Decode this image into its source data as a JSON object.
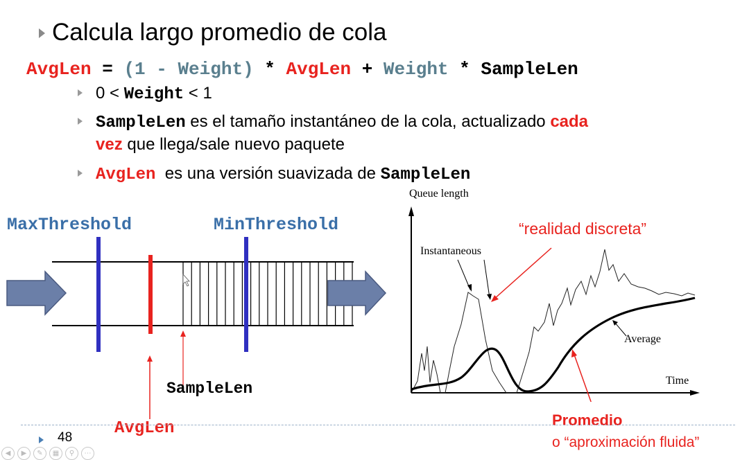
{
  "slide": {
    "title": "Calcula largo promedio de cola",
    "formula": {
      "t1": "AvgLen",
      "t2": " = ",
      "t3": "(1 - Weight)",
      "t4": " * ",
      "t5": "AvgLen",
      "t6": " + ",
      "t7": "Weight",
      "t8": " * SampleLen"
    },
    "bullet1": {
      "a": "0 < ",
      "b": "Weight",
      "c": " < 1"
    },
    "bullet2": {
      "a": "SampleLen",
      "b": " es el tamaño instantáneo de la cola, actualizado ",
      "c": "cada",
      "d": "vez",
      "e": " que llega/sale nuevo paquete"
    },
    "bullet3": {
      "a": "AvgLen",
      "b": "  es una versión suavizada de ",
      "c": "SampleLen"
    },
    "page_number": "48"
  },
  "queue_diagram": {
    "max_threshold": "MaxThreshold",
    "min_threshold": "MinThreshold",
    "sample_len": "SampleLen",
    "avg_len": "AvgLen",
    "colors": {
      "threshold": "#3030c0",
      "avg": "#e8231f",
      "arrow": "#6b7fa8"
    }
  },
  "graph": {
    "y_label": "Queue length",
    "x_label": "Time",
    "instantaneous": "Instantaneous",
    "average": "Average",
    "note_top": "“realidad discreta”",
    "note_bottom_1": "Promedio",
    "note_bottom_2": "o “aproximación fluida”"
  }
}
